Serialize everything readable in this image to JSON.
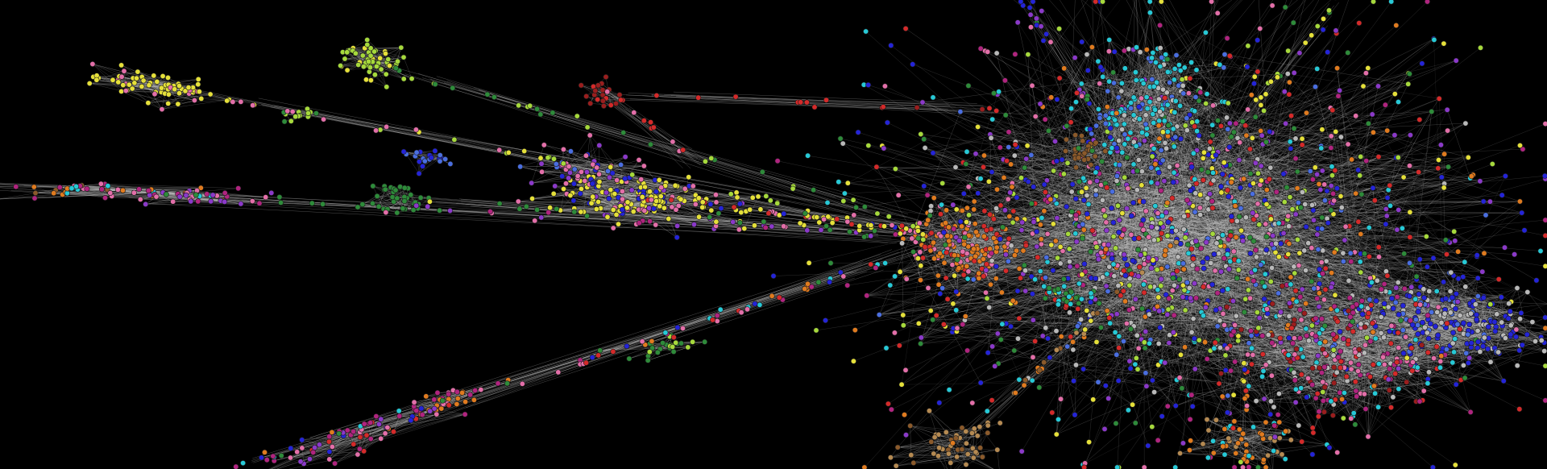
{
  "scene": {
    "background": "#000000",
    "edge_color": "#d8d8d8",
    "node_stroke": "#1a1a1a",
    "palette": {
      "yellow": "#e5e03a",
      "lime": "#a6d93c",
      "green": "#2e8b3a",
      "dark_red": "#9a1e1e",
      "red": "#d42a2a",
      "pink": "#e36fa9",
      "magenta": "#b0247f",
      "purple": "#8b39c9",
      "blue": "#2424d8",
      "light_blue": "#4a6ee0",
      "cyan": "#27c9d6",
      "orange": "#e07b1f",
      "brown": "#8b5a2b",
      "tan": "#b58a52",
      "grey": "#b9b9b9"
    }
  }
}
